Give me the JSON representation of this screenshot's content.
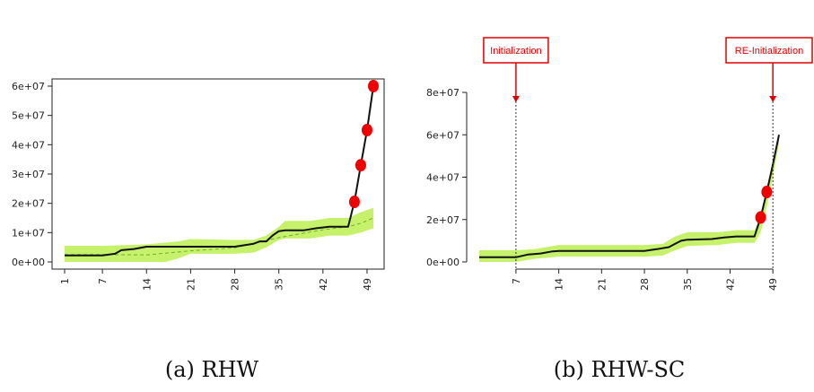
{
  "colors": {
    "band": "#c6f26b",
    "line": "#111111",
    "mean_line": "#6fae2a",
    "marker": "#ee0000",
    "annotation": "#e00000",
    "axis": "#222222"
  },
  "chart_data": [
    {
      "type": "line",
      "caption": "(a) RHW",
      "x_ticks": [
        1,
        7,
        14,
        21,
        28,
        35,
        42,
        49
      ],
      "x_tick_labels": [
        "1",
        "7",
        "14",
        "21",
        "28",
        "35",
        "42",
        "49"
      ],
      "y_ticks": [
        0,
        10000000,
        20000000,
        30000000,
        40000000,
        50000000,
        60000000
      ],
      "y_tick_labels": [
        "0e+00",
        "1e+07",
        "2e+07",
        "3e+07",
        "4e+07",
        "5e+07",
        "6e+07"
      ],
      "xlim": [
        1,
        50
      ],
      "ylim": [
        0,
        60000000
      ],
      "series": [
        {
          "role": "observed",
          "points": [
            [
              1,
              2200000
            ],
            [
              7,
              2200000
            ],
            [
              9,
              2800000
            ],
            [
              10,
              4000000
            ],
            [
              12,
              4400000
            ],
            [
              14,
              5200000
            ],
            [
              21,
              5200000
            ],
            [
              28,
              5200000
            ],
            [
              31,
              6200000
            ],
            [
              32,
              7000000
            ],
            [
              33,
              7000000
            ],
            [
              34,
              9000000
            ],
            [
              35,
              10500000
            ],
            [
              36,
              10800000
            ],
            [
              39,
              10800000
            ],
            [
              41,
              11500000
            ],
            [
              43,
              12000000
            ],
            [
              46,
              12000000
            ],
            [
              47,
              20500000
            ],
            [
              48,
              33000000
            ],
            [
              49,
              45000000
            ],
            [
              50,
              60000000
            ]
          ]
        },
        {
          "role": "band_upper",
          "points": [
            [
              1,
              5500000
            ],
            [
              7,
              5500000
            ],
            [
              10,
              5700000
            ],
            [
              14,
              6000000
            ],
            [
              19,
              7000000
            ],
            [
              21,
              7800000
            ],
            [
              28,
              7500000
            ],
            [
              31,
              7600000
            ],
            [
              33,
              9000000
            ],
            [
              35,
              12000000
            ],
            [
              36,
              14000000
            ],
            [
              40,
              14000000
            ],
            [
              43,
              15000000
            ],
            [
              46,
              15000000
            ],
            [
              48,
              17000000
            ],
            [
              50,
              18500000
            ]
          ]
        },
        {
          "role": "band_lower",
          "points": [
            [
              1,
              0
            ],
            [
              7,
              0
            ],
            [
              12,
              0
            ],
            [
              17,
              0
            ],
            [
              19,
              1200000
            ],
            [
              21,
              2800000
            ],
            [
              28,
              2800000
            ],
            [
              31,
              3200000
            ],
            [
              33,
              5000000
            ],
            [
              35,
              7500000
            ],
            [
              36,
              8000000
            ],
            [
              40,
              8000000
            ],
            [
              43,
              9000000
            ],
            [
              46,
              9000000
            ],
            [
              48,
              10000000
            ],
            [
              50,
              11500000
            ]
          ]
        },
        {
          "role": "mean",
          "points": [
            [
              1,
              2500000
            ],
            [
              7,
              2500000
            ],
            [
              14,
              2400000
            ],
            [
              21,
              3800000
            ],
            [
              28,
              4800000
            ],
            [
              35,
              8300000
            ],
            [
              42,
              11000000
            ],
            [
              46,
              12000000
            ],
            [
              48,
              13200000
            ],
            [
              50,
              15000000
            ]
          ]
        },
        {
          "role": "markers",
          "points": [
            [
              47,
              20500000
            ],
            [
              48,
              33000000
            ],
            [
              49,
              45000000
            ],
            [
              50,
              60000000
            ]
          ]
        }
      ]
    },
    {
      "type": "line",
      "caption": "(b) RHW-SC",
      "x_ticks": [
        7,
        14,
        21,
        28,
        35,
        42,
        49
      ],
      "x_tick_labels": [
        "7",
        "14",
        "21",
        "28",
        "35",
        "42",
        "49"
      ],
      "y_ticks": [
        0,
        20000000,
        40000000,
        60000000,
        80000000
      ],
      "y_tick_labels": [
        "0e+00",
        "2e+07",
        "4e+07",
        "6e+07",
        "8e+07"
      ],
      "xlim": [
        1,
        50
      ],
      "ylim": [
        0,
        80000000
      ],
      "annotations": [
        {
          "text": "Initialization",
          "x": 7
        },
        {
          "text": "RE-Initialization",
          "x": 49
        }
      ],
      "series": [
        {
          "role": "observed",
          "points": [
            [
              1,
              2200000
            ],
            [
              7,
              2200000
            ],
            [
              9,
              3500000
            ],
            [
              11,
              4000000
            ],
            [
              13,
              5000000
            ],
            [
              14,
              5200000
            ],
            [
              21,
              5200000
            ],
            [
              28,
              5200000
            ],
            [
              30,
              6000000
            ],
            [
              32,
              7000000
            ],
            [
              33,
              8500000
            ],
            [
              34,
              10000000
            ],
            [
              35,
              10500000
            ],
            [
              39,
              10800000
            ],
            [
              41,
              11500000
            ],
            [
              43,
              12000000
            ],
            [
              46,
              12000000
            ],
            [
              47,
              21000000
            ],
            [
              48,
              33000000
            ],
            [
              49,
              46000000
            ],
            [
              50,
              60000000
            ]
          ]
        },
        {
          "role": "band_upper",
          "points": [
            [
              1,
              5500000
            ],
            [
              7,
              5500000
            ],
            [
              10,
              6000000
            ],
            [
              14,
              8000000
            ],
            [
              21,
              8000000
            ],
            [
              28,
              8000000
            ],
            [
              31,
              8500000
            ],
            [
              33,
              12000000
            ],
            [
              35,
              14000000
            ],
            [
              40,
              14000000
            ],
            [
              43,
              15000000
            ],
            [
              46,
              15000000
            ],
            [
              47,
              22000000
            ],
            [
              48,
              35000000
            ],
            [
              49,
              48000000
            ],
            [
              50,
              61000000
            ]
          ]
        },
        {
          "role": "band_lower",
          "points": [
            [
              1,
              0
            ],
            [
              7,
              0
            ],
            [
              10,
              1500000
            ],
            [
              14,
              2500000
            ],
            [
              21,
              2500000
            ],
            [
              28,
              2500000
            ],
            [
              31,
              3000000
            ],
            [
              33,
              5500000
            ],
            [
              35,
              7500000
            ],
            [
              40,
              8000000
            ],
            [
              43,
              9000000
            ],
            [
              46,
              9000000
            ],
            [
              47,
              14000000
            ],
            [
              48,
              26000000
            ],
            [
              49,
              40000000
            ],
            [
              50,
              56000000
            ]
          ]
        },
        {
          "role": "markers",
          "points": [
            [
              47,
              21000000
            ],
            [
              48,
              33000000
            ]
          ]
        }
      ]
    }
  ]
}
